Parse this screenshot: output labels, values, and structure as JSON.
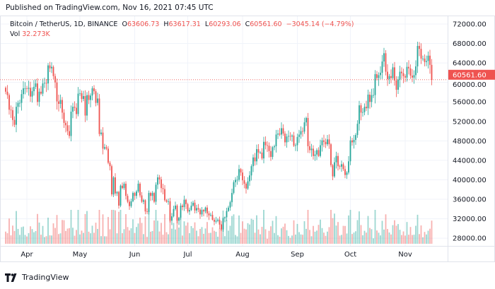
{
  "header": {
    "published": "Published on TradingView.com, Nov 16, 2021 07:45 UTC"
  },
  "legend": {
    "symbol": "Bitcoin / TetherUS, 1D, BINANCE",
    "o_label": "O",
    "o": "63606.73",
    "h_label": "H",
    "h": "63617.31",
    "l_label": "L",
    "l": "60293.06",
    "c_label": "C",
    "c": "60561.60",
    "change": "−3045.14 (−4.79%)",
    "vol_label": "Vol",
    "vol": "32.273K"
  },
  "footer": {
    "brand": "TradingView"
  },
  "colors": {
    "up": "#26a69a",
    "down": "#ef5350",
    "grid": "#f0f3fa",
    "border": "#e0e3eb"
  },
  "chart_data": {
    "type": "candlestick",
    "x_start": "2021-03-20",
    "x_end": "2021-11-16",
    "interval": "1D",
    "ylim": [
      26000,
      74000
    ],
    "y_ticks": [
      "72000.00",
      "68000.00",
      "64000.00",
      "60000.00",
      "56000.00",
      "52000.00",
      "48000.00",
      "44000.00",
      "40000.00",
      "36000.00",
      "32000.00",
      "28000.00"
    ],
    "x_ticks": [
      {
        "label": "Apr",
        "date": "2021-04-01"
      },
      {
        "label": "May",
        "date": "2021-05-01"
      },
      {
        "label": "Jun",
        "date": "2021-06-01"
      },
      {
        "label": "Jul",
        "date": "2021-07-01"
      },
      {
        "label": "Aug",
        "date": "2021-08-01"
      },
      {
        "label": "Sep",
        "date": "2021-09-01"
      },
      {
        "label": "Oct",
        "date": "2021-10-01"
      },
      {
        "label": "Nov",
        "date": "2021-11-01"
      }
    ],
    "last_price": "60561.60",
    "first_open": 58900,
    "closes": [
      58100,
      57400,
      54400,
      54300,
      52300,
      51300,
      55000,
      55800,
      55800,
      57600,
      58800,
      58800,
      58700,
      58900,
      57100,
      58200,
      59100,
      59800,
      56000,
      58100,
      57700,
      59800,
      59900,
      59800,
      63500,
      62900,
      63200,
      61300,
      60000,
      56100,
      55600,
      56400,
      53800,
      51700,
      51200,
      50000,
      49000,
      54000,
      55000,
      54800,
      53500,
      57700,
      57800,
      56600,
      57200,
      53200,
      57400,
      56400,
      57300,
      58800,
      58200,
      55800,
      56700,
      49400,
      49700,
      46400,
      46700,
      46400,
      43500,
      42800,
      37000,
      40500,
      37200,
      37500,
      34700,
      38800,
      38300,
      39200,
      36700,
      35500,
      34600,
      35600,
      37300,
      36700,
      37600,
      39200,
      36800,
      35500,
      35800,
      33500,
      33400,
      37300,
      36700,
      37300,
      35500,
      39000,
      40500,
      40100,
      38300,
      38100,
      35800,
      35500,
      35600,
      31600,
      32500,
      34000,
      34700,
      31600,
      32200,
      34700,
      34400,
      35900,
      35000,
      33500,
      33800,
      34700,
      35300,
      33700,
      34200,
      33900,
      32900,
      33800,
      33500,
      34300,
      33100,
      32700,
      32800,
      31800,
      31400,
      31600,
      31800,
      30800,
      29800,
      32100,
      32300,
      33600,
      34300,
      35400,
      37300,
      39500,
      40000,
      40000,
      42200,
      41500,
      39900,
      39200,
      38200,
      39700,
      40900,
      42800,
      44600,
      43800,
      46300,
      45600,
      45600,
      44400,
      47800,
      47100,
      47000,
      45900,
      44700,
      46700,
      46900,
      49300,
      49500,
      49300,
      50600,
      49500,
      47700,
      48900,
      49000,
      48900,
      49100,
      47000,
      47100,
      48800,
      49300,
      50000,
      49900,
      51800,
      52700,
      46900,
      46100,
      46400,
      44900,
      45200,
      46100,
      44900,
      47100,
      48100,
      47800,
      47300,
      48300,
      47300,
      43000,
      40700,
      43600,
      44900,
      42800,
      42700,
      43200,
      42200,
      41000,
      41500,
      43800,
      48100,
      47700,
      48200,
      49200,
      51500,
      55300,
      53800,
      53900,
      55000,
      54700,
      57500,
      56000,
      57400,
      57400,
      61700,
      60900,
      61500,
      62000,
      64300,
      66000,
      62200,
      60700,
      61300,
      60900,
      63100,
      60400,
      58500,
      60600,
      62200,
      61900,
      61300,
      61000,
      63200,
      62900,
      61400,
      61000,
      61500,
      63300,
      67500,
      66900,
      64900,
      64900,
      64200,
      64400,
      65500,
      63606.73,
      60561.6
    ]
  }
}
